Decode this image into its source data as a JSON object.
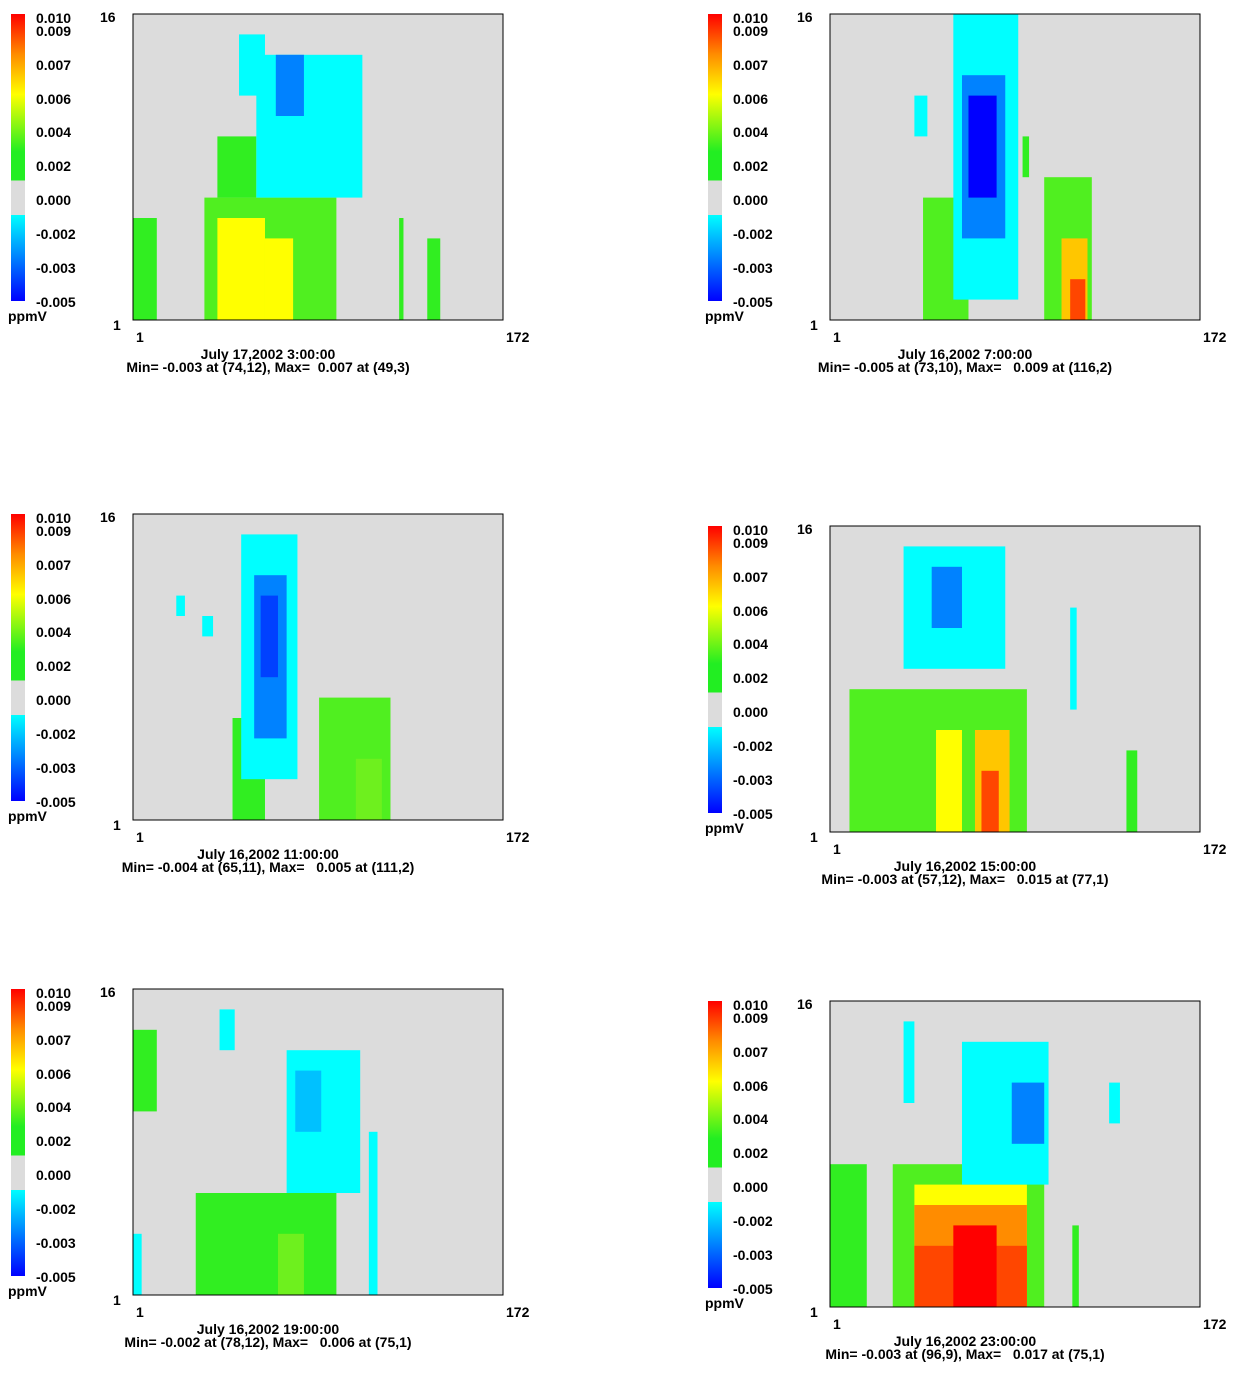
{
  "colorbar": {
    "labels": [
      "0.010",
      "0.009",
      "0.007",
      "0.006",
      "0.004",
      "0.002",
      "0.000",
      "-0.002",
      "-0.003",
      "-0.005"
    ],
    "unit": "ppmV",
    "colors": {
      "red": "#ff0000",
      "orange": "#ff8c00",
      "yellow": "#ffff00",
      "green": "#22ee22",
      "gray": "#dcdcdc",
      "cyan": "#00ffff",
      "blue": "#0000ff"
    }
  },
  "chart_data": [
    {
      "type": "heatmap",
      "title": "July 17,2002 3:00:00",
      "stats": "Min= -0.003 at (74,12), Max=  0.007 at (49,3)",
      "xlim": [
        1,
        172
      ],
      "ylim": [
        1,
        16
      ],
      "x_ticks": [
        "1",
        "172"
      ],
      "y_ticks": [
        "1",
        "16"
      ],
      "regions": [
        {
          "x": [
            34,
            95
          ],
          "y": [
            1,
            7
          ],
          "value": 0.003
        },
        {
          "x": [
            40,
            58
          ],
          "y": [
            7,
            10
          ],
          "value": 0.002
        },
        {
          "x": [
            50,
            62
          ],
          "y": [
            12,
            15
          ],
          "value": -0.001
        },
        {
          "x": [
            58,
            107
          ],
          "y": [
            7,
            14
          ],
          "value": -0.001
        },
        {
          "x": [
            67,
            80
          ],
          "y": [
            11,
            14
          ],
          "value": -0.003
        },
        {
          "x": [
            40,
            62
          ],
          "y": [
            1,
            6
          ],
          "value": 0.006
        },
        {
          "x": [
            62,
            75
          ],
          "y": [
            1,
            5
          ],
          "value": 0.006
        },
        {
          "x": [
            1,
            12
          ],
          "y": [
            1,
            6
          ],
          "value": 0.002
        },
        {
          "x": [
            137,
            143
          ],
          "y": [
            1,
            5
          ],
          "value": 0.002
        },
        {
          "x": [
            124,
            126
          ],
          "y": [
            1,
            6
          ],
          "value": 0.002
        }
      ]
    },
    {
      "type": "heatmap",
      "title": "July 16,2002 7:00:00",
      "stats": "Min= -0.005 at (73,10), Max=   0.009 at (116,2)",
      "xlim": [
        1,
        172
      ],
      "ylim": [
        1,
        16
      ],
      "x_ticks": [
        "1",
        "172"
      ],
      "y_ticks": [
        "1",
        "16"
      ],
      "regions": [
        {
          "x": [
            44,
            65
          ],
          "y": [
            1,
            7
          ],
          "value": 0.003
        },
        {
          "x": [
            58,
            88
          ],
          "y": [
            2,
            16
          ],
          "value": -0.001
        },
        {
          "x": [
            62,
            82
          ],
          "y": [
            5,
            13
          ],
          "value": -0.003
        },
        {
          "x": [
            65,
            78
          ],
          "y": [
            7,
            12
          ],
          "value": -0.005
        },
        {
          "x": [
            100,
            122
          ],
          "y": [
            1,
            8
          ],
          "value": 0.003
        },
        {
          "x": [
            108,
            120
          ],
          "y": [
            1,
            5
          ],
          "value": 0.007
        },
        {
          "x": [
            112,
            119
          ],
          "y": [
            1,
            3
          ],
          "value": 0.009
        },
        {
          "x": [
            40,
            46
          ],
          "y": [
            10,
            12
          ],
          "value": -0.001
        },
        {
          "x": [
            90,
            93
          ],
          "y": [
            8,
            10
          ],
          "value": 0.002
        }
      ]
    },
    {
      "type": "heatmap",
      "title": "July 16,2002 11:00:00",
      "stats": "Min= -0.004 at (65,11), Max=   0.005 at (111,2)",
      "xlim": [
        1,
        172
      ],
      "ylim": [
        1,
        16
      ],
      "x_ticks": [
        "1",
        "172"
      ],
      "y_ticks": [
        "1",
        "16"
      ],
      "regions": [
        {
          "x": [
            47,
            62
          ],
          "y": [
            1,
            6
          ],
          "value": 0.002
        },
        {
          "x": [
            51,
            77
          ],
          "y": [
            3,
            15
          ],
          "value": -0.001
        },
        {
          "x": [
            57,
            72
          ],
          "y": [
            5,
            13
          ],
          "value": -0.003
        },
        {
          "x": [
            60,
            68
          ],
          "y": [
            8,
            12
          ],
          "value": -0.004
        },
        {
          "x": [
            87,
            120
          ],
          "y": [
            1,
            7
          ],
          "value": 0.003
        },
        {
          "x": [
            104,
            116
          ],
          "y": [
            1,
            4
          ],
          "value": 0.004
        },
        {
          "x": [
            21,
            25
          ],
          "y": [
            11,
            12
          ],
          "value": -0.001
        },
        {
          "x": [
            33,
            38
          ],
          "y": [
            10,
            11
          ],
          "value": -0.001
        }
      ]
    },
    {
      "type": "heatmap",
      "title": "July 16,2002 15:00:00",
      "stats": "Min= -0.003 at (57,12), Max=   0.015 at (77,1)",
      "xlim": [
        1,
        172
      ],
      "ylim": [
        1,
        16
      ],
      "x_ticks": [
        "1",
        "172"
      ],
      "y_ticks": [
        "1",
        "16"
      ],
      "regions": [
        {
          "x": [
            10,
            92
          ],
          "y": [
            1,
            8
          ],
          "value": 0.003
        },
        {
          "x": [
            35,
            82
          ],
          "y": [
            9,
            15
          ],
          "value": -0.001
        },
        {
          "x": [
            48,
            62
          ],
          "y": [
            11,
            14
          ],
          "value": -0.003
        },
        {
          "x": [
            50,
            62
          ],
          "y": [
            1,
            6
          ],
          "value": 0.006
        },
        {
          "x": [
            68,
            84
          ],
          "y": [
            1,
            6
          ],
          "value": 0.007
        },
        {
          "x": [
            71,
            79
          ],
          "y": [
            1,
            4
          ],
          "value": 0.009
        },
        {
          "x": [
            112,
            115
          ],
          "y": [
            7,
            12
          ],
          "value": -0.001
        },
        {
          "x": [
            138,
            143
          ],
          "y": [
            1,
            5
          ],
          "value": 0.002
        }
      ]
    },
    {
      "type": "heatmap",
      "title": "July 16,2002 19:00:00",
      "stats": "Min= -0.002 at (78,12), Max=   0.006 at (75,1)",
      "xlim": [
        1,
        172
      ],
      "ylim": [
        1,
        16
      ],
      "x_ticks": [
        "1",
        "172"
      ],
      "y_ticks": [
        "1",
        "16"
      ],
      "regions": [
        {
          "x": [
            1,
            12
          ],
          "y": [
            10,
            14
          ],
          "value": 0.002
        },
        {
          "x": [
            41,
            48
          ],
          "y": [
            13,
            15
          ],
          "value": -0.001
        },
        {
          "x": [
            72,
            106
          ],
          "y": [
            6,
            13
          ],
          "value": -0.001
        },
        {
          "x": [
            76,
            88
          ],
          "y": [
            9,
            12
          ],
          "value": -0.002
        },
        {
          "x": [
            30,
            95
          ],
          "y": [
            1,
            6
          ],
          "value": 0.002
        },
        {
          "x": [
            68,
            80
          ],
          "y": [
            1,
            4
          ],
          "value": 0.004
        },
        {
          "x": [
            1,
            5
          ],
          "y": [
            1,
            4
          ],
          "value": -0.001
        },
        {
          "x": [
            110,
            114
          ],
          "y": [
            1,
            9
          ],
          "value": -0.001
        }
      ]
    },
    {
      "type": "heatmap",
      "title": "July 16,2002 23:00:00",
      "stats": "Min= -0.003 at (96,9), Max=   0.017 at (75,1)",
      "xlim": [
        1,
        172
      ],
      "ylim": [
        1,
        16
      ],
      "x_ticks": [
        "1",
        "172"
      ],
      "y_ticks": [
        "1",
        "16"
      ],
      "regions": [
        {
          "x": [
            1,
            18
          ],
          "y": [
            1,
            8
          ],
          "value": 0.002
        },
        {
          "x": [
            30,
            100
          ],
          "y": [
            1,
            8
          ],
          "value": 0.003
        },
        {
          "x": [
            40,
            92
          ],
          "y": [
            1,
            7
          ],
          "value": 0.006
        },
        {
          "x": [
            40,
            92
          ],
          "y": [
            1,
            6
          ],
          "value": 0.008
        },
        {
          "x": [
            40,
            92
          ],
          "y": [
            1,
            4
          ],
          "value": 0.009
        },
        {
          "x": [
            58,
            78
          ],
          "y": [
            1,
            5
          ],
          "value": 0.01
        },
        {
          "x": [
            35,
            40
          ],
          "y": [
            11,
            15
          ],
          "value": -0.001
        },
        {
          "x": [
            62,
            102
          ],
          "y": [
            7,
            14
          ],
          "value": -0.001
        },
        {
          "x": [
            85,
            100
          ],
          "y": [
            9,
            12
          ],
          "value": -0.003
        },
        {
          "x": [
            130,
            135
          ],
          "y": [
            10,
            12
          ],
          "value": -0.001
        },
        {
          "x": [
            113,
            116
          ],
          "y": [
            1,
            5
          ],
          "value": 0.002
        }
      ]
    }
  ]
}
